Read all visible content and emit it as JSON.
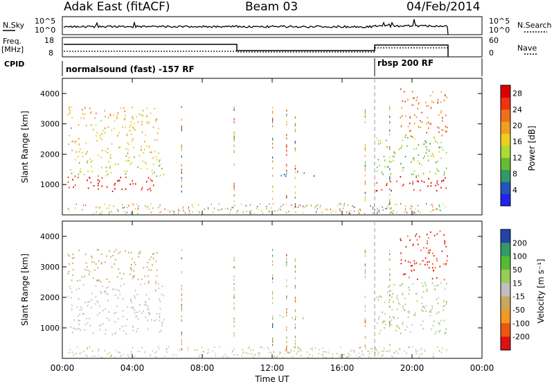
{
  "header": {
    "station": "Adak East (fitACF)",
    "beam": "Beam 03",
    "date": "04/Feb/2014"
  },
  "sky_panel": {
    "left_label": "N.Sky",
    "right_label": "N.Search",
    "tick_top": "10^5",
    "tick_bottom": "10^0"
  },
  "freq_panel": {
    "left_label_1": "Freq.",
    "left_label_2": "[MHz]",
    "left_tick_top": "18",
    "left_tick_bottom": "8",
    "right_label": "Nave",
    "right_tick_top": "60",
    "right_tick_bottom": "0"
  },
  "cpid_panel": {
    "label": "CPID",
    "program_1": "normalsound (fast) -157 RF",
    "program_2": "rbsp 200 RF"
  },
  "colors": {
    "power_scale": [
      "#2222ee",
      "#2255bb",
      "#339966",
      "#66bb33",
      "#aadd33",
      "#eecc22",
      "#f0a020",
      "#f07018",
      "#ee3311",
      "#dd0000"
    ],
    "velocity_scale": [
      "#dd1111",
      "#ee5511",
      "#f29922",
      "#c8a860",
      "#bfbfbf",
      "#99cc55",
      "#55bb33",
      "#339966",
      "#2244aa"
    ]
  },
  "chart_data": [
    {
      "type": "heatmap",
      "name": "power",
      "ylabel": "Slant Range [km]",
      "y_ticks": [
        "1000",
        "2000",
        "3000",
        "4000"
      ],
      "ylim": [
        0,
        4500
      ],
      "colorbar_label": "Power [dB]",
      "colorbar_ticks": [
        "4",
        "8",
        "12",
        "16",
        "20",
        "24",
        "28"
      ],
      "colorbar_range": [
        0,
        30
      ],
      "regions": [
        {
          "t_start": 0.3,
          "t_end": 5.5,
          "r_start": 800,
          "r_end": 1300,
          "value": 28
        },
        {
          "t_start": 0.3,
          "t_end": 5.8,
          "r_start": 1300,
          "r_end": 2000,
          "value": 14
        },
        {
          "t_start": 0.3,
          "t_end": 5.5,
          "r_start": 2000,
          "r_end": 3600,
          "value": 18
        },
        {
          "t_start": 12.3,
          "t_end": 14.5,
          "r_start": 1300,
          "r_end": 1450,
          "value": 6
        },
        {
          "t_start": 17.9,
          "t_end": 22.0,
          "r_start": 800,
          "r_end": 1300,
          "value": 28
        },
        {
          "t_start": 17.9,
          "t_end": 22.0,
          "r_start": 1300,
          "r_end": 2600,
          "value": 12
        },
        {
          "t_start": 19.3,
          "t_end": 22.0,
          "r_start": 2600,
          "r_end": 4200,
          "value": 22
        }
      ]
    },
    {
      "type": "heatmap",
      "name": "velocity",
      "ylabel": "Slant Range [km]",
      "y_ticks": [
        "1000",
        "2000",
        "3000",
        "4000"
      ],
      "ylim": [
        0,
        4500
      ],
      "xlabel": "Time UT",
      "x_ticks": [
        "00:00",
        "04:00",
        "08:00",
        "12:00",
        "16:00",
        "20:00",
        "00:00"
      ],
      "xlim": [
        0,
        24
      ],
      "colorbar_label": "Velocity [m s⁻¹]",
      "colorbar_ticks": [
        "200",
        "100",
        "50",
        "15",
        "-15",
        "-50",
        "-100",
        "-200"
      ],
      "colorbar_range": [
        -250,
        250
      ],
      "regions": [
        {
          "t_start": 0.3,
          "t_end": 5.8,
          "r_start": 800,
          "r_end": 2500,
          "value": 0
        },
        {
          "t_start": 0.3,
          "t_end": 5.5,
          "r_start": 2500,
          "r_end": 3600,
          "value": -50
        },
        {
          "t_start": 12.3,
          "t_end": 14.5,
          "r_start": 1300,
          "r_end": 1450,
          "value": 40
        },
        {
          "t_start": 17.9,
          "t_end": 22.0,
          "r_start": 800,
          "r_end": 2600,
          "value": 30
        },
        {
          "t_start": 19.3,
          "t_end": 22.0,
          "r_start": 2600,
          "r_end": 4200,
          "value": -200
        }
      ]
    }
  ]
}
